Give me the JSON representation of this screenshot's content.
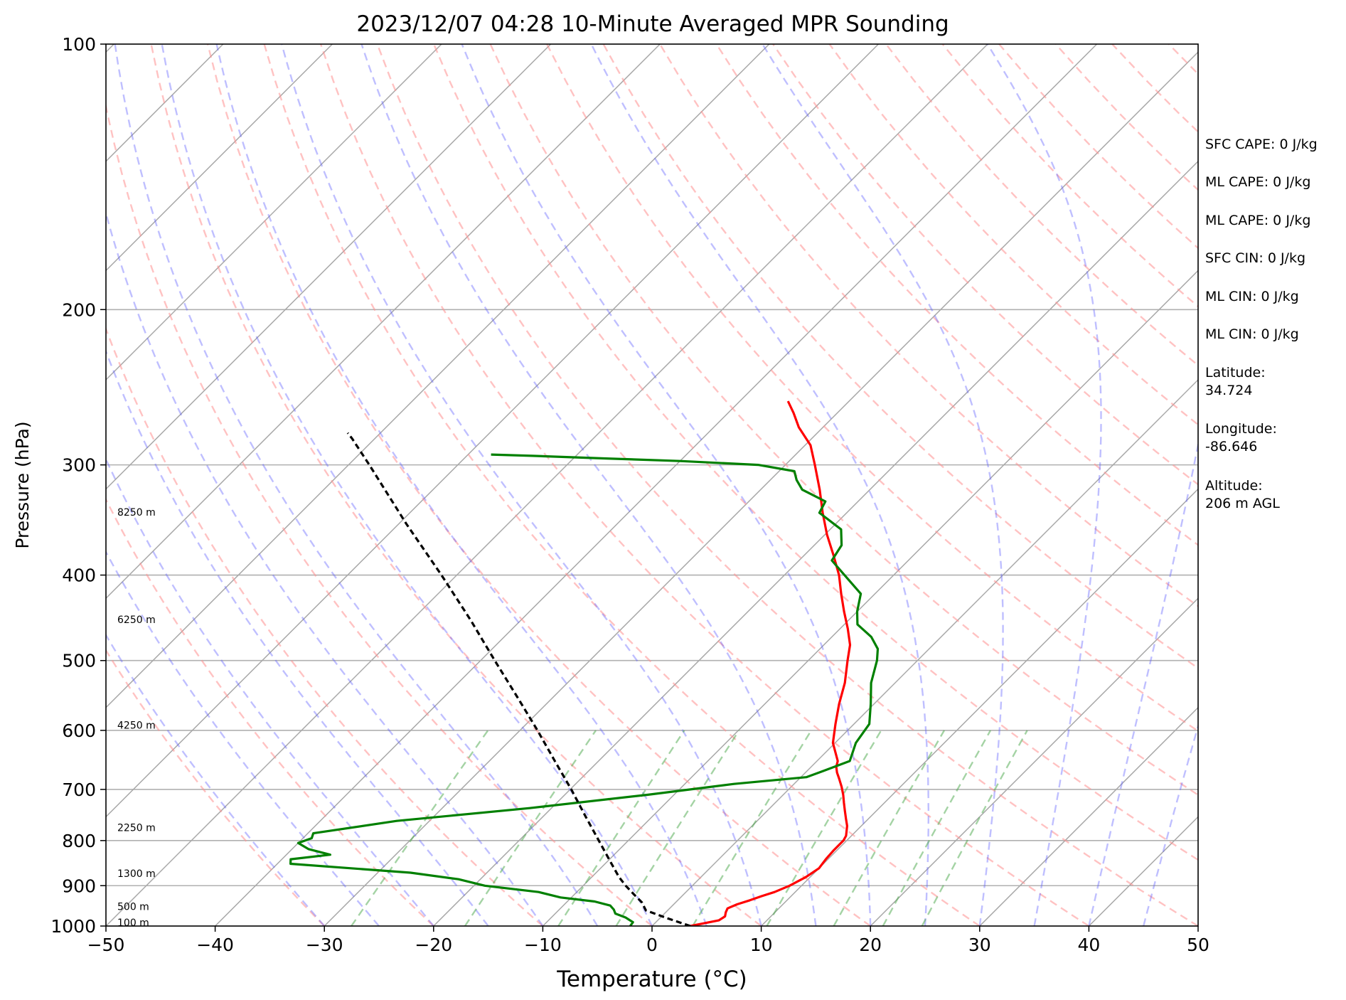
{
  "chart_data": {
    "type": "line",
    "title": "2023/12/07 04:28 10-Minute Averaged MPR Sounding",
    "xlabel": "Temperature (°C)",
    "ylabel": "Pressure (hPa)",
    "xlim": [
      -50,
      50
    ],
    "ylim": [
      1000,
      100
    ],
    "yscale": "log",
    "skew": true,
    "grid": true,
    "x_ticks": [
      "−50",
      "−40",
      "−30",
      "−20",
      "−10",
      "0",
      "10",
      "20",
      "30",
      "40",
      "50"
    ],
    "y_ticks": [
      "100",
      "200",
      "300",
      "400",
      "500",
      "600",
      "700",
      "800",
      "900",
      "1000"
    ],
    "height_labels": [
      {
        "text": "100 m",
        "p": 993
      },
      {
        "text": "500 m",
        "p": 952
      },
      {
        "text": "1300 m",
        "p": 873
      },
      {
        "text": "2250 m",
        "p": 775
      },
      {
        "text": "4250 m",
        "p": 593
      },
      {
        "text": "6250 m",
        "p": 450
      },
      {
        "text": "8250 m",
        "p": 340
      }
    ],
    "series": [
      {
        "color": "#ff0000",
        "points": [
          [
            1000,
            3.5
          ],
          [
            995,
            4.2
          ],
          [
            985,
            5.6
          ],
          [
            975,
            5.8
          ],
          [
            965,
            5.5
          ],
          [
            955,
            5.3
          ],
          [
            945,
            5.8
          ],
          [
            935,
            6.6
          ],
          [
            925,
            7.3
          ],
          [
            915,
            8.1
          ],
          [
            900,
            8.9
          ],
          [
            880,
            9.6
          ],
          [
            860,
            10.0
          ],
          [
            840,
            9.8
          ],
          [
            820,
            9.7
          ],
          [
            800,
            9.7
          ],
          [
            790,
            9.5
          ],
          [
            770,
            8.7
          ],
          [
            755,
            7.9
          ],
          [
            740,
            7.1
          ],
          [
            725,
            6.3
          ],
          [
            710,
            5.5
          ],
          [
            695,
            4.6
          ],
          [
            680,
            3.6
          ],
          [
            670,
            2.9
          ],
          [
            660,
            2.3
          ],
          [
            650,
            1.9
          ],
          [
            620,
            -0.2
          ],
          [
            590,
            -1.7
          ],
          [
            560,
            -3.2
          ],
          [
            530,
            -4.6
          ],
          [
            500,
            -6.4
          ],
          [
            480,
            -7.6
          ],
          [
            460,
            -9.3
          ],
          [
            440,
            -11.2
          ],
          [
            420,
            -13.1
          ],
          [
            400,
            -15.0
          ],
          [
            380,
            -17.3
          ],
          [
            360,
            -19.8
          ],
          [
            340,
            -22.2
          ],
          [
            320,
            -24.6
          ],
          [
            300,
            -27.3
          ],
          [
            285,
            -29.5
          ],
          [
            272,
            -32.2
          ],
          [
            262,
            -34.0
          ],
          [
            254,
            -35.6
          ]
        ]
      },
      {
        "color": "#008000",
        "points": [
          [
            1000,
            -2.0
          ],
          [
            990,
            -2.1
          ],
          [
            978,
            -3.2
          ],
          [
            968,
            -4.5
          ],
          [
            958,
            -5.0
          ],
          [
            948,
            -5.7
          ],
          [
            938,
            -7.5
          ],
          [
            928,
            -11.0
          ],
          [
            915,
            -13.5
          ],
          [
            900,
            -19.0
          ],
          [
            885,
            -22.0
          ],
          [
            870,
            -27.0
          ],
          [
            850,
            -38.8
          ],
          [
            840,
            -39.2
          ],
          [
            830,
            -36.0
          ],
          [
            818,
            -38.5
          ],
          [
            805,
            -40.0
          ],
          [
            795,
            -39.2
          ],
          [
            785,
            -39.5
          ],
          [
            760,
            -33.0
          ],
          [
            735,
            -22.0
          ],
          [
            710,
            -12.5
          ],
          [
            690,
            -5.5
          ],
          [
            678,
            0.5
          ],
          [
            668,
            1.4
          ],
          [
            650,
            3.0
          ],
          [
            620,
            1.9
          ],
          [
            590,
            1.4
          ],
          [
            560,
            -0.3
          ],
          [
            530,
            -2.2
          ],
          [
            500,
            -3.7
          ],
          [
            485,
            -4.7
          ],
          [
            470,
            -6.4
          ],
          [
            455,
            -8.8
          ],
          [
            440,
            -10.0
          ],
          [
            420,
            -11.3
          ],
          [
            400,
            -14.5
          ],
          [
            385,
            -17.0
          ],
          [
            370,
            -17.5
          ],
          [
            355,
            -19.0
          ],
          [
            340,
            -22.5
          ],
          [
            330,
            -23.0
          ],
          [
            320,
            -26.2
          ],
          [
            312,
            -27.6
          ],
          [
            305,
            -28.6
          ],
          [
            300,
            -32.5
          ],
          [
            297,
            -40.0
          ],
          [
            295,
            -47.0
          ],
          [
            293,
            -54.0
          ],
          [
            292,
            -57.9
          ]
        ]
      },
      {
        "color": "#000000",
        "dash": "8,5",
        "points": [
          [
            1000,
            3.5
          ],
          [
            980,
            0.7
          ],
          [
            960,
            -2.0
          ],
          [
            940,
            -3.1
          ],
          [
            920,
            -4.6
          ],
          [
            900,
            -6.1
          ],
          [
            880,
            -7.5
          ],
          [
            850,
            -9.4
          ],
          [
            800,
            -12.7
          ],
          [
            750,
            -16.2
          ],
          [
            700,
            -19.9
          ],
          [
            650,
            -24.0
          ],
          [
            600,
            -28.4
          ],
          [
            550,
            -33.3
          ],
          [
            500,
            -38.7
          ],
          [
            450,
            -44.6
          ],
          [
            400,
            -51.4
          ],
          [
            350,
            -59.3
          ],
          [
            300,
            -68.1
          ],
          [
            280,
            -72.1
          ],
          [
            276,
            -73.0
          ]
        ]
      }
    ],
    "info": [
      "SFC CAPE: 0 J/kg",
      "ML CAPE: 0 J/kg",
      "ML CAPE: 0 J/kg",
      "SFC CIN: 0 J/kg",
      "ML CIN: 0 J/kg",
      "ML CIN: 0 J/kg",
      "Latitude:\n34.724",
      "Longitude:\n-86.646",
      "Altitude:\n206 m AGL"
    ]
  }
}
